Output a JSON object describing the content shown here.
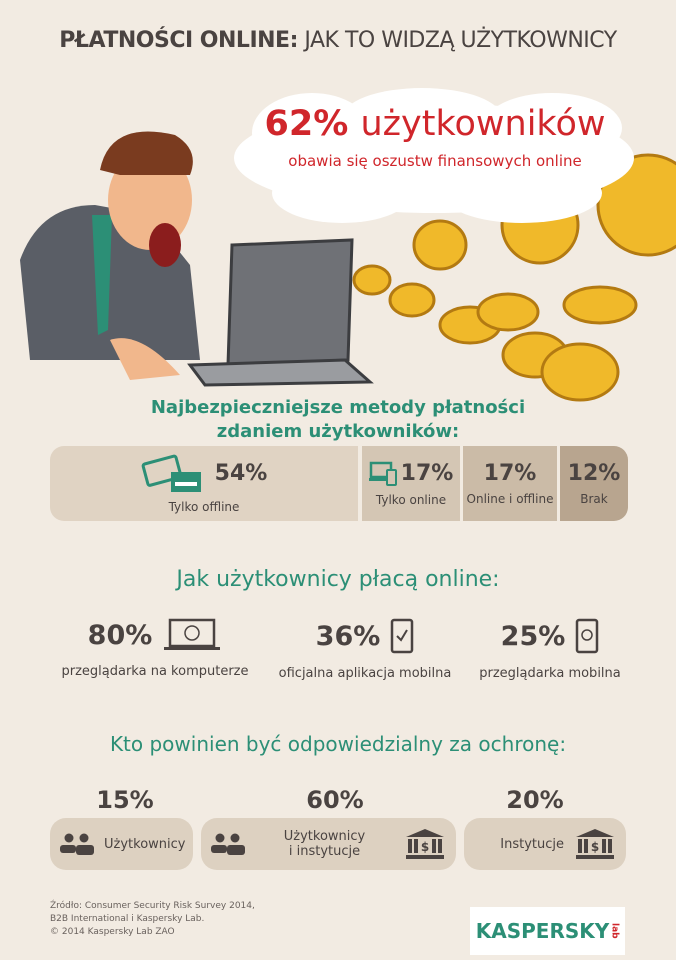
{
  "title": {
    "bold": "PŁATNOŚCI ONLINE:",
    "rest": "JAK TO WIDZĄ UŻYTKOWNICY"
  },
  "headline": {
    "percent": "62%",
    "word": "użytkowników",
    "sub": "obawia się oszustw finansowych online"
  },
  "safest": {
    "title1": "Najbezpieczniejsze metody płatności",
    "title2": "zdaniem użytkowników:",
    "items": [
      {
        "pct": "54%",
        "label": "Tylko offline",
        "icon": "cash-card-icon",
        "color": "#e0d3c3"
      },
      {
        "pct": "17%",
        "label": "Tylko online",
        "icon": "laptop-phone-icon",
        "color": "#d4c6b4"
      },
      {
        "pct": "17%",
        "label": "Online i offline",
        "color": "#cbbba7"
      },
      {
        "pct": "12%",
        "label": "Brak",
        "color": "#b8a58f"
      }
    ]
  },
  "pay": {
    "title": "Jak użytkownicy płacą online:",
    "items": [
      {
        "pct": "80%",
        "label": "przeglądarka na komputerze",
        "icon": "laptop-globe-icon"
      },
      {
        "pct": "36%",
        "label": "oficjalna aplikacja mobilna",
        "icon": "phone-check-icon"
      },
      {
        "pct": "25%",
        "label": "przeglądarka mobilna",
        "icon": "phone-globe-icon"
      }
    ]
  },
  "resp": {
    "title": "Kto powinien być odpowiedzialny za ochronę:",
    "items": [
      {
        "pct": "15%",
        "label": "Użytkownicy"
      },
      {
        "pct": "60%",
        "label1": "Użytkownicy",
        "label2": "i instytucje"
      },
      {
        "pct": "20%",
        "label": "Instytucje"
      }
    ]
  },
  "source": [
    "Źródło: Consumer Security Risk Survey 2014,",
    "B2B International i Kaspersky Lab.",
    "© 2014 Kaspersky Lab ZAO"
  ],
  "logo": "KASPERSKY lab",
  "colors": {
    "accent": "#2c8f76",
    "red": "#d0262b",
    "text": "#4a4341",
    "bg": "#f2ebe2"
  }
}
